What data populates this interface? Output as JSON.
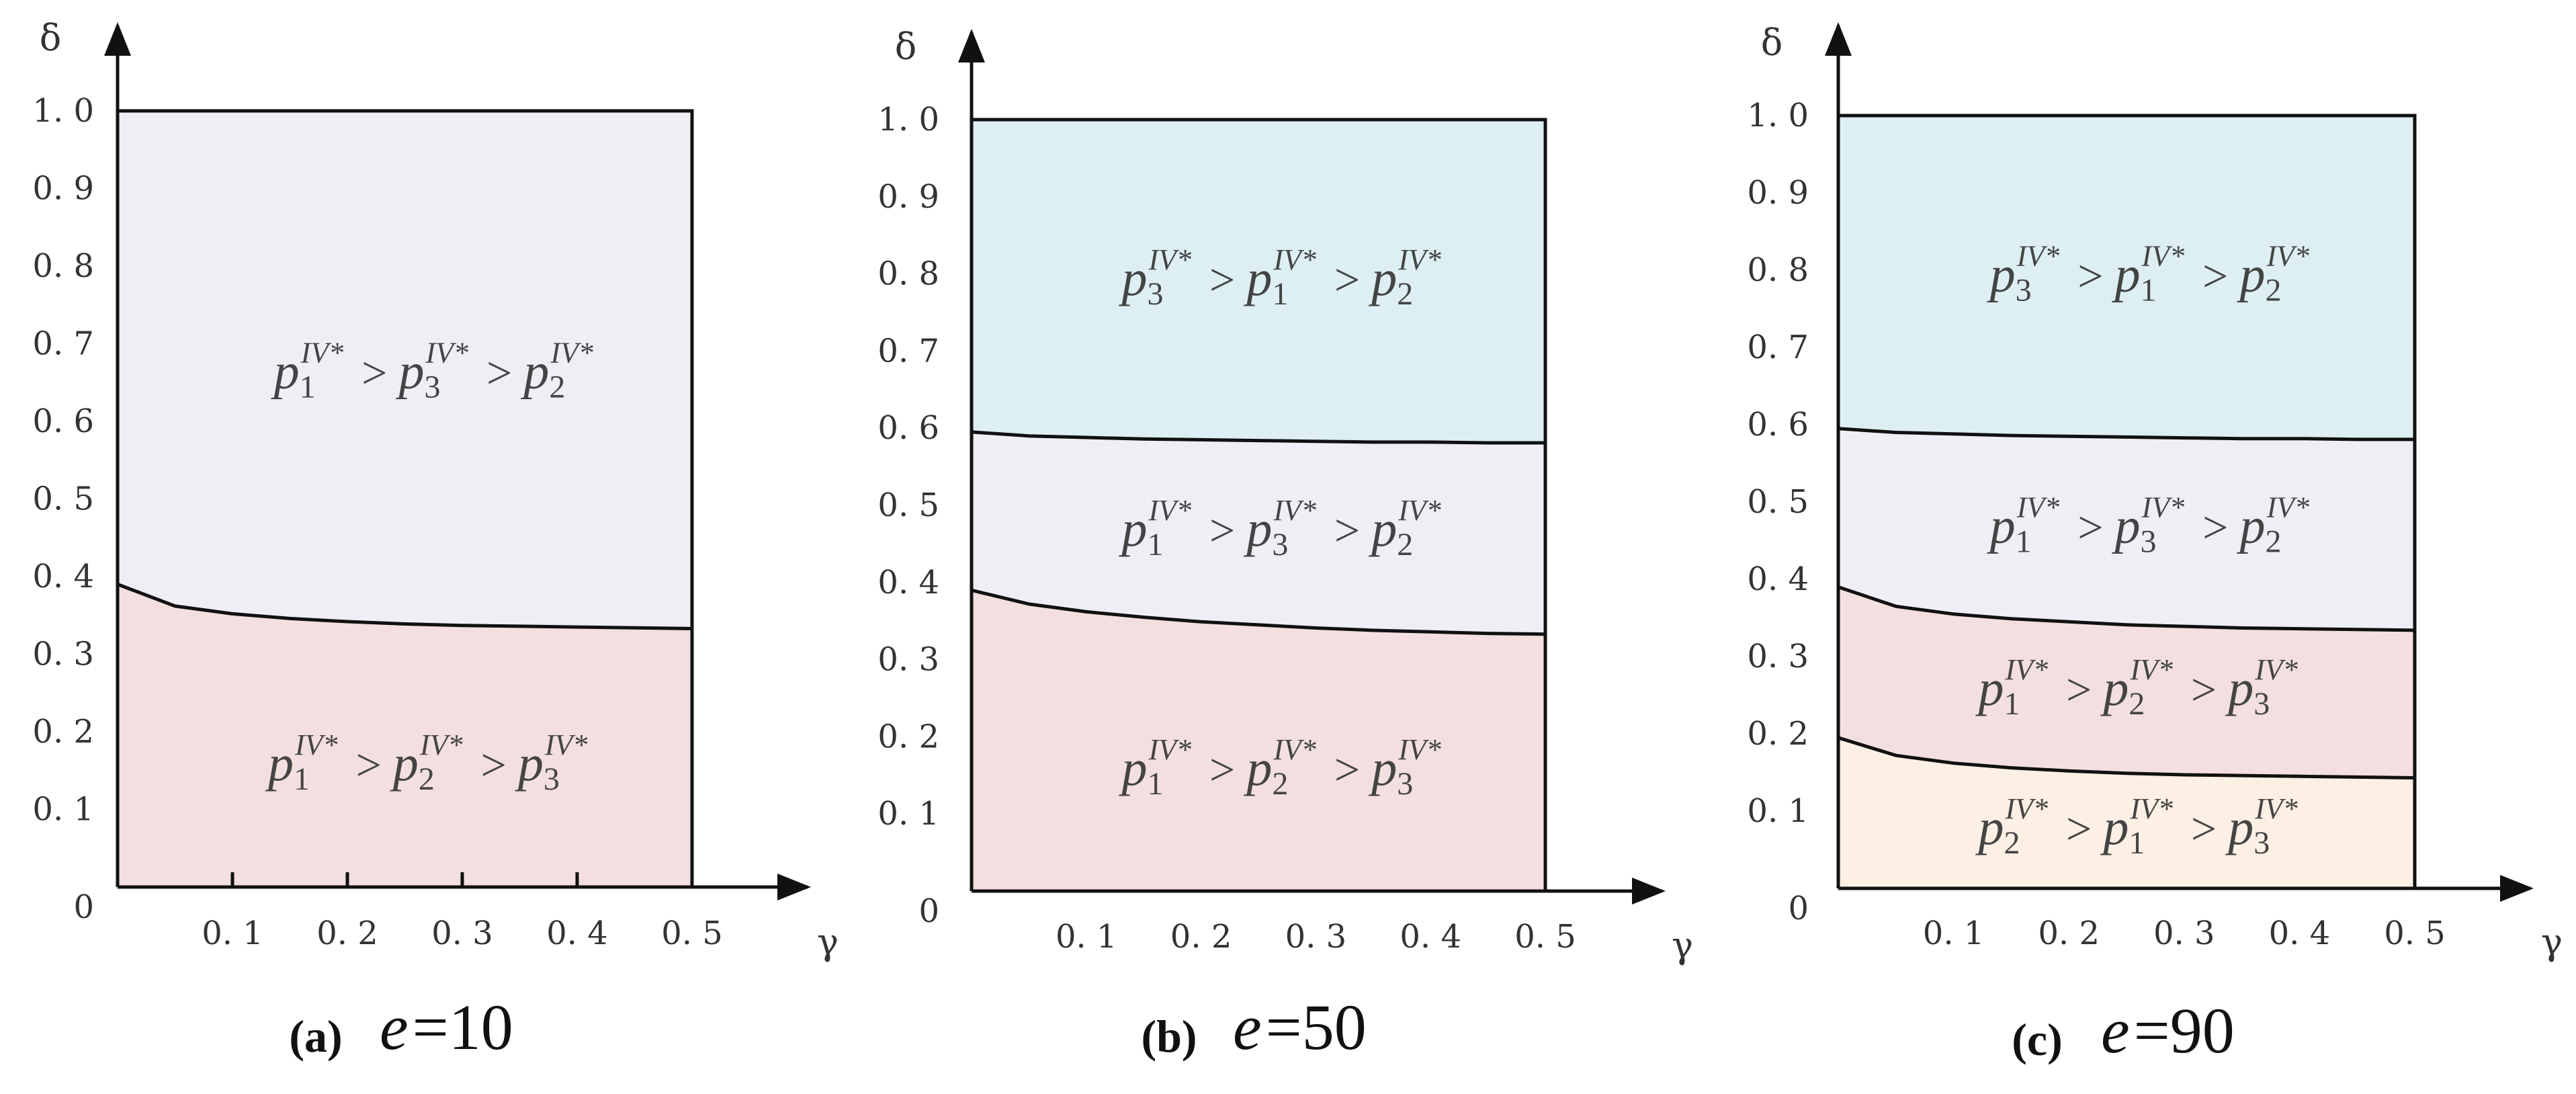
{
  "chart_data": [
    {
      "type": "area",
      "caption_letter": "(a)",
      "caption_param": "e",
      "caption_value": "=10",
      "xlabel": "γ",
      "ylabel": "δ",
      "xlim": [
        0,
        0.5
      ],
      "ylim": [
        0,
        1.0
      ],
      "x_ticks": [
        "0. 1",
        "0. 2",
        "0. 3",
        "0. 4",
        "0. 5"
      ],
      "y_ticks": [
        "0",
        "0. 1",
        "0. 2",
        "0. 3",
        "0. 4",
        "0. 5",
        "0. 6",
        "0. 7",
        "0. 8",
        "0. 9",
        "1. 0"
      ],
      "boundaries": [
        {
          "x": [
            0,
            0.05,
            0.1,
            0.15,
            0.2,
            0.25,
            0.3,
            0.35,
            0.4,
            0.45,
            0.5
          ],
          "y": [
            0.39,
            0.362,
            0.352,
            0.346,
            0.342,
            0.339,
            0.337,
            0.336,
            0.335,
            0.334,
            0.333
          ]
        }
      ],
      "regions": [
        {
          "order": [
            "1",
            "3",
            "2"
          ],
          "color": "#f0eef5",
          "label_at": [
            0.275,
            0.66
          ]
        },
        {
          "order": [
            "1",
            "2",
            "3"
          ],
          "color": "#f3dfdf",
          "label_at": [
            0.27,
            0.155
          ]
        }
      ]
    },
    {
      "type": "area",
      "caption_letter": "(b)",
      "caption_param": "e",
      "caption_value": "=50",
      "xlabel": "γ",
      "ylabel": "δ",
      "xlim": [
        0,
        0.5
      ],
      "ylim": [
        0,
        1.0
      ],
      "x_ticks": [
        "0. 1",
        "0. 2",
        "0. 3",
        "0. 4",
        "0. 5"
      ],
      "y_ticks": [
        "0",
        "0. 1",
        "0. 2",
        "0. 3",
        "0. 4",
        "0. 5",
        "0. 6",
        "0. 7",
        "0. 8",
        "0. 9",
        "1. 0"
      ],
      "boundaries": [
        {
          "x": [
            0,
            0.05,
            0.1,
            0.15,
            0.2,
            0.25,
            0.3,
            0.35,
            0.4,
            0.45,
            0.5
          ],
          "y": [
            0.595,
            0.59,
            0.588,
            0.586,
            0.585,
            0.584,
            0.583,
            0.582,
            0.582,
            0.581,
            0.581
          ]
        },
        {
          "x": [
            0,
            0.05,
            0.1,
            0.15,
            0.2,
            0.25,
            0.3,
            0.35,
            0.4,
            0.45,
            0.5
          ],
          "y": [
            0.39,
            0.372,
            0.362,
            0.355,
            0.349,
            0.345,
            0.341,
            0.338,
            0.336,
            0.334,
            0.333
          ]
        }
      ],
      "regions": [
        {
          "order": [
            "3",
            "1",
            "2"
          ],
          "color": "#ddeff3",
          "label_at": [
            0.27,
            0.79
          ]
        },
        {
          "order": [
            "1",
            "3",
            "2"
          ],
          "color": "#f0eef5",
          "label_at": [
            0.27,
            0.465
          ]
        },
        {
          "order": [
            "1",
            "2",
            "3"
          ],
          "color": "#f3dfdf",
          "label_at": [
            0.27,
            0.155
          ]
        }
      ]
    },
    {
      "type": "area",
      "caption_letter": "(c)",
      "caption_param": "e",
      "caption_value": "=90",
      "xlabel": "γ",
      "ylabel": "δ",
      "xlim": [
        0,
        0.5
      ],
      "ylim": [
        0,
        1.0
      ],
      "x_ticks": [
        "0. 1",
        "0. 2",
        "0. 3",
        "0. 4",
        "0. 5"
      ],
      "y_ticks": [
        "0",
        "0. 1",
        "0. 2",
        "0. 3",
        "0. 4",
        "0. 5",
        "0. 6",
        "0. 7",
        "0. 8",
        "0. 9",
        "1. 0"
      ],
      "boundaries": [
        {
          "x": [
            0,
            0.05,
            0.1,
            0.15,
            0.2,
            0.25,
            0.3,
            0.35,
            0.4,
            0.45,
            0.5
          ],
          "y": [
            0.595,
            0.59,
            0.588,
            0.586,
            0.585,
            0.584,
            0.583,
            0.582,
            0.582,
            0.581,
            0.581
          ]
        },
        {
          "x": [
            0,
            0.05,
            0.1,
            0.15,
            0.2,
            0.25,
            0.3,
            0.35,
            0.4,
            0.45,
            0.5
          ],
          "y": [
            0.39,
            0.365,
            0.355,
            0.349,
            0.345,
            0.341,
            0.339,
            0.337,
            0.336,
            0.335,
            0.334
          ]
        },
        {
          "x": [
            0,
            0.05,
            0.1,
            0.15,
            0.2,
            0.25,
            0.3,
            0.35,
            0.4,
            0.45,
            0.5
          ],
          "y": [
            0.195,
            0.172,
            0.162,
            0.156,
            0.152,
            0.149,
            0.147,
            0.146,
            0.145,
            0.144,
            0.143
          ]
        }
      ],
      "regions": [
        {
          "order": [
            "3",
            "1",
            "2"
          ],
          "color": "#ddeff3",
          "label_at": [
            0.27,
            0.79
          ]
        },
        {
          "order": [
            "1",
            "3",
            "2"
          ],
          "color": "#f0eef5",
          "label_at": [
            0.27,
            0.465
          ]
        },
        {
          "order": [
            "1",
            "2",
            "3"
          ],
          "color": "#f3dfdf",
          "label_at": [
            0.26,
            0.255
          ]
        },
        {
          "order": [
            "2",
            "1",
            "3"
          ],
          "color": "#fcefe3",
          "label_at": [
            0.26,
            0.075
          ]
        }
      ]
    }
  ],
  "label_symbol": "p",
  "label_superscript": "IV*",
  "label_operator": ">"
}
